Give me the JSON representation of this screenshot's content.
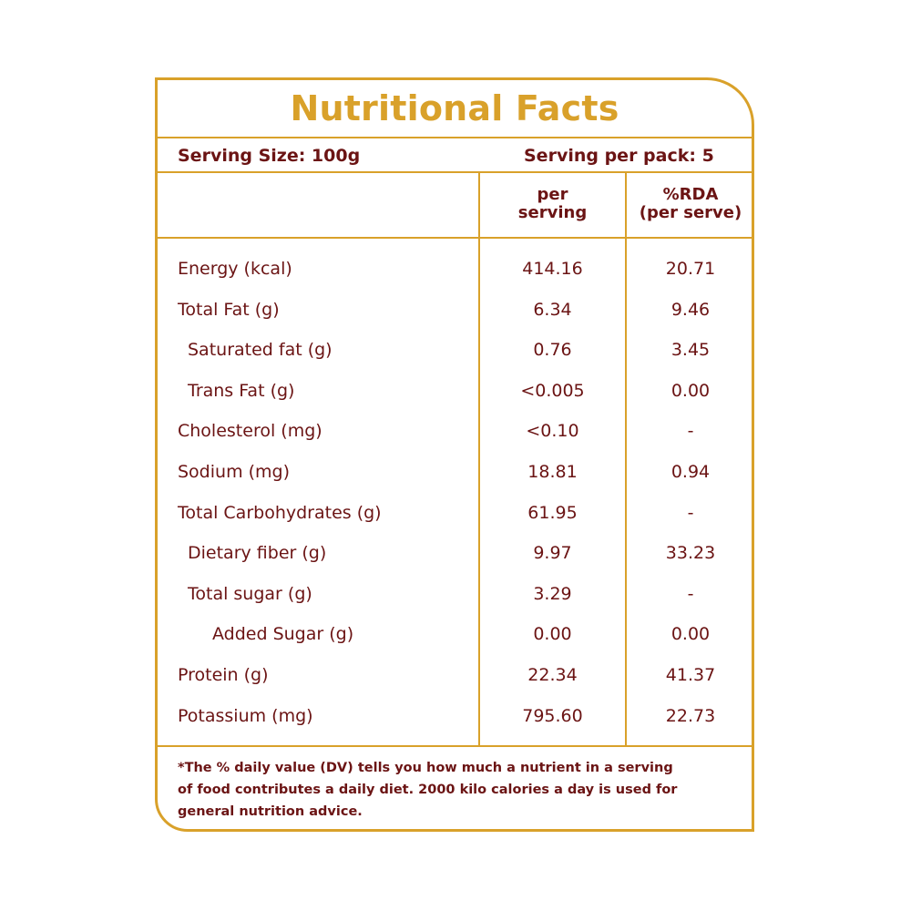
{
  "title": "Nutritional Facts",
  "serving": {
    "size": "Serving Size: 100g",
    "per_pack": "Serving per pack: 5"
  },
  "columns": {
    "per_serving_line1": "per",
    "per_serving_line2": "serving",
    "rda_line1": "%RDA",
    "rda_line2": "(per serve)"
  },
  "rows": [
    {
      "name": "Energy (kcal)",
      "per_serving": "414.16",
      "rda": "20.71",
      "level": 0
    },
    {
      "name": "Total Fat (g)",
      "per_serving": "6.34",
      "rda": "9.46",
      "level": 0
    },
    {
      "name": "Saturated fat (g)",
      "per_serving": "0.76",
      "rda": "3.45",
      "level": 1
    },
    {
      "name": "Trans Fat (g)",
      "per_serving": "<0.005",
      "rda": "0.00",
      "level": 1
    },
    {
      "name": "Cholesterol (mg)",
      "per_serving": "<0.10",
      "rda": "-",
      "level": 0
    },
    {
      "name": "Sodium (mg)",
      "per_serving": "18.81",
      "rda": "0.94",
      "level": 0
    },
    {
      "name": "Total Carbohydrates  (g)",
      "per_serving": "61.95",
      "rda": "-",
      "level": 0
    },
    {
      "name": "Dietary fiber (g)",
      "per_serving": "9.97",
      "rda": "33.23",
      "level": 1
    },
    {
      "name": "Total sugar (g)",
      "per_serving": "3.29",
      "rda": "-",
      "level": 1
    },
    {
      "name": "Added Sugar (g)",
      "per_serving": "0.00",
      "rda": "0.00",
      "level": 2
    },
    {
      "name": "Protein (g)",
      "per_serving": "22.34",
      "rda": "41.37",
      "level": 0
    },
    {
      "name": "Potassium (mg)",
      "per_serving": "795.60",
      "rda": "22.73",
      "level": 0
    }
  ],
  "footnote": {
    "line1": "*The % daily value (DV) tells you how much a nutrient in a serving",
    "line2": "of food contributes a daily diet. 2000 kilo calories a day is used for",
    "line3": "general nutrition advice."
  },
  "colors": {
    "border": "#d9a12a",
    "title": "#d9a12a",
    "text": "#6b1414"
  }
}
